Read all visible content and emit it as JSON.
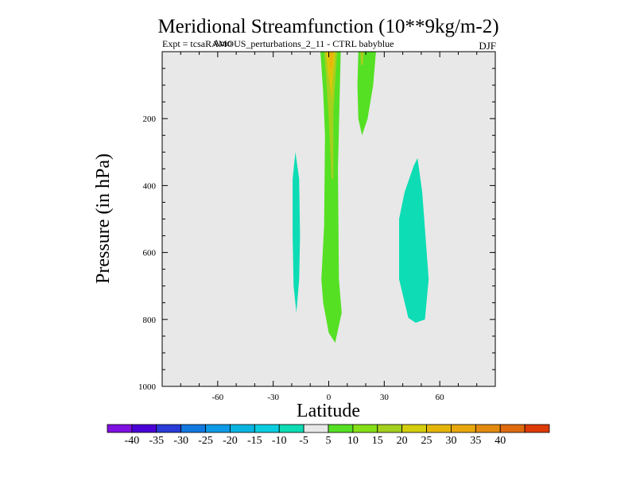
{
  "chart_data": {
    "type": "contour",
    "title": "Meridional Streamfunction (10**9kg/m-2)",
    "subtitle_left": "Expt = tcsaRAMOUS_perturbations_2_11 - CTRL babyblue",
    "subtitle_left_overprint": "Amo",
    "season": "DJF",
    "xlabel": "Latitude",
    "ylabel": "Pressure (in hPa)",
    "xlim": [
      -90,
      90
    ],
    "ylim": [
      1000,
      0
    ],
    "x_ticks": [
      -60,
      -30,
      0,
      30,
      60
    ],
    "y_ticks": [
      200,
      400,
      600,
      800,
      1000
    ],
    "regions": [
      {
        "name": "region-south-band",
        "value_range": [
          -10,
          -5
        ],
        "color": "#0ddcb4",
        "points": [
          [
            -18,
            300
          ],
          [
            -16,
            380
          ],
          [
            -15.5,
            550
          ],
          [
            -16,
            680
          ],
          [
            -17.5,
            780
          ],
          [
            -19,
            700
          ],
          [
            -19.5,
            550
          ],
          [
            -19.5,
            380
          ]
        ]
      },
      {
        "name": "region-midlat-north",
        "value_range": [
          -10,
          -5
        ],
        "color": "#0ddcb4",
        "points": [
          [
            48,
            318
          ],
          [
            50.5,
            420
          ],
          [
            54,
            680
          ],
          [
            52,
            800
          ],
          [
            47,
            810
          ],
          [
            43,
            795
          ],
          [
            38,
            680
          ],
          [
            38,
            500
          ],
          [
            41,
            420
          ],
          [
            46,
            340
          ]
        ]
      },
      {
        "name": "region-equator-outer",
        "value_range": [
          5,
          10
        ],
        "color": "#55e024",
        "points": [
          [
            -4.5,
            0
          ],
          [
            6.5,
            0
          ],
          [
            5,
            350
          ],
          [
            5.5,
            680
          ],
          [
            7,
            780
          ],
          [
            3.5,
            870
          ],
          [
            0,
            840
          ],
          [
            -3,
            750
          ],
          [
            -4,
            680
          ],
          [
            -2.5,
            520
          ],
          [
            -2,
            250
          ],
          [
            -3,
            120
          ]
        ]
      },
      {
        "name": "region-equator-yellowgreen",
        "value_range": [
          10,
          15
        ],
        "color": "#a4d01e",
        "points": [
          [
            -2.5,
            0
          ],
          [
            4.5,
            0
          ],
          [
            2.5,
            180
          ],
          [
            2.5,
            380
          ],
          [
            1.5,
            380
          ],
          [
            0,
            200
          ],
          [
            -1.5,
            70
          ]
        ]
      },
      {
        "name": "region-equator-yellow",
        "value_range": [
          15,
          20
        ],
        "color": "#d9c80a",
        "points": [
          [
            -1.5,
            0
          ],
          [
            3.5,
            0
          ],
          [
            2,
            90
          ],
          [
            2,
            150
          ],
          [
            1,
            110
          ],
          [
            -0.5,
            60
          ]
        ]
      },
      {
        "name": "region-equator-orange",
        "value_range": [
          20,
          25
        ],
        "color": "#e8b40a",
        "points": [
          [
            0,
            0
          ],
          [
            2.5,
            0
          ],
          [
            2,
            40
          ],
          [
            1,
            60
          ]
        ]
      },
      {
        "name": "region-north-band",
        "value_range": [
          5,
          10
        ],
        "color": "#55e024",
        "points": [
          [
            16,
            0
          ],
          [
            25.5,
            0
          ],
          [
            24,
            100
          ],
          [
            21,
            200
          ],
          [
            18,
            250
          ],
          [
            16,
            200
          ],
          [
            15.5,
            100
          ]
        ]
      },
      {
        "name": "region-north-band-inner",
        "value_range": [
          10,
          15
        ],
        "color": "#a4d01e",
        "points": [
          [
            17,
            0
          ],
          [
            19,
            0
          ],
          [
            18.5,
            40
          ],
          [
            17.5,
            40
          ]
        ]
      }
    ],
    "colorbar": {
      "colors": [
        "#7f10e0",
        "#4a00d6",
        "#2a3bd8",
        "#1278e0",
        "#0e9ae6",
        "#08b4e0",
        "#0ccde0",
        "#0ddcb4",
        "#e8e8e8",
        "#55e024",
        "#86de18",
        "#a4d01e",
        "#d4ce0e",
        "#e4b60a",
        "#e8a80c",
        "#e28a0e",
        "#df6a0e",
        "#dc3a06"
      ],
      "labels": [
        "-40",
        "-35",
        "-30",
        "-25",
        "-20",
        "-15",
        "-10",
        "-5",
        "5",
        "10",
        "15",
        "20",
        "25",
        "30",
        "35",
        "40"
      ]
    },
    "background_color": "#e8e8e8"
  }
}
